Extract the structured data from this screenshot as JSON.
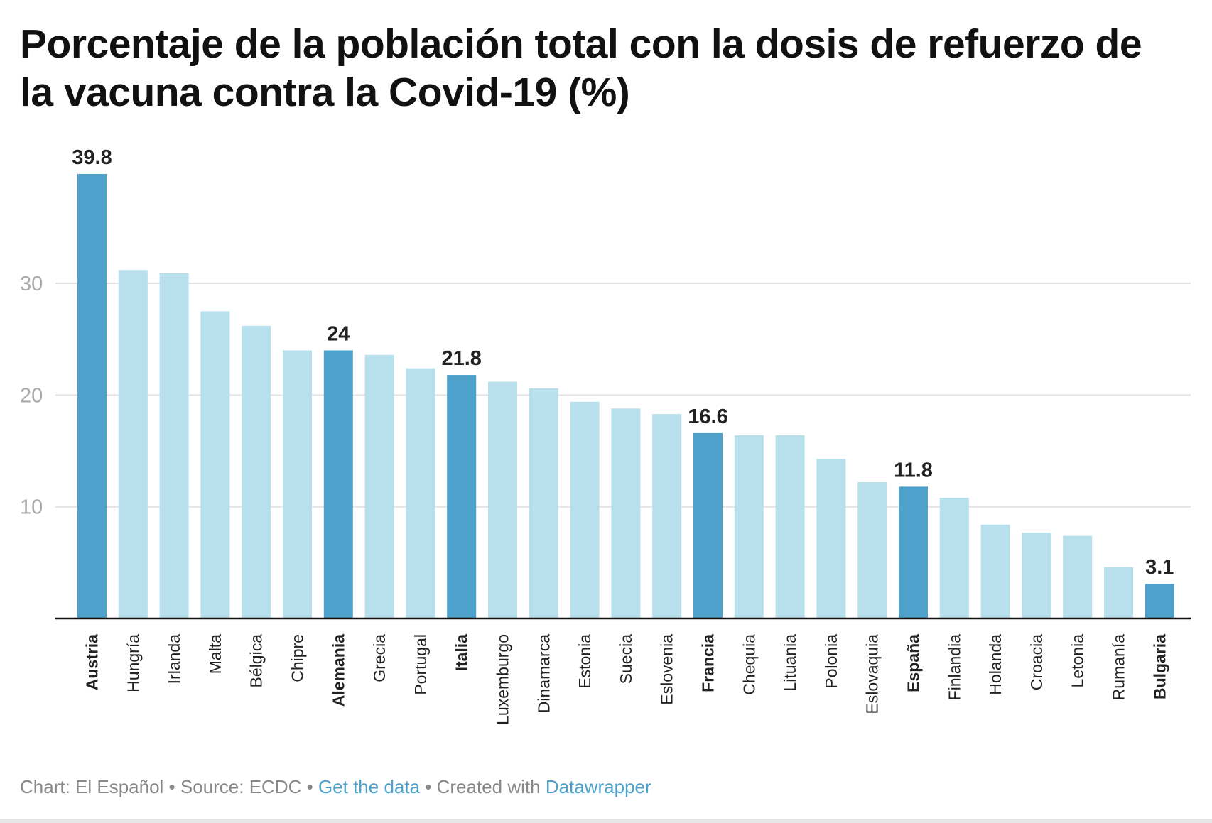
{
  "title": "Porcentaje de la población total con la dosis de refuerzo de la vacuna contra la Covid-19 (%)",
  "footer": {
    "chart_by": "Chart: El Español",
    "sep1": " • ",
    "source": "Source: ECDC",
    "sep2": " • ",
    "get_data": "Get the data",
    "sep3": " • ",
    "created_with": "Created with ",
    "datawrapper": "Datawrapper"
  },
  "colors": {
    "highlight": "#4ea1cb",
    "default": "#b8dfec",
    "link": "#4ea1cb"
  },
  "chart_data": {
    "type": "bar",
    "title": "Porcentaje de la población total con la dosis de refuerzo de la vacuna contra la Covid-19 (%)",
    "xlabel": "",
    "ylabel": "",
    "ylim": [
      0,
      40
    ],
    "yticks": [
      10,
      20,
      30
    ],
    "grid": true,
    "categories": [
      "Austria",
      "Hungría",
      "Irlanda",
      "Malta",
      "Bélgica",
      "Chipre",
      "Alemania",
      "Grecia",
      "Portugal",
      "Italia",
      "Luxemburgo",
      "Dinamarca",
      "Estonia",
      "Suecia",
      "Eslovenia",
      "Francia",
      "Chequia",
      "Lituania",
      "Polonia",
      "Eslovaquia",
      "España",
      "Finlandia",
      "Holanda",
      "Croacia",
      "Letonia",
      "Rumanía",
      "Bulgaria"
    ],
    "values": [
      39.8,
      31.2,
      30.9,
      27.5,
      26.2,
      24.0,
      24,
      23.6,
      22.4,
      21.8,
      21.2,
      20.6,
      19.4,
      18.8,
      18.3,
      16.6,
      16.4,
      16.4,
      14.3,
      12.2,
      11.8,
      10.8,
      8.4,
      7.7,
      7.4,
      4.6,
      3.1
    ],
    "highlighted": [
      "Austria",
      "Alemania",
      "Italia",
      "Francia",
      "España",
      "Bulgaria"
    ],
    "data_labels": {
      "Austria": "39.8",
      "Alemania": "24",
      "Italia": "21.8",
      "Francia": "16.6",
      "España": "11.8",
      "Bulgaria": "3.1"
    }
  }
}
